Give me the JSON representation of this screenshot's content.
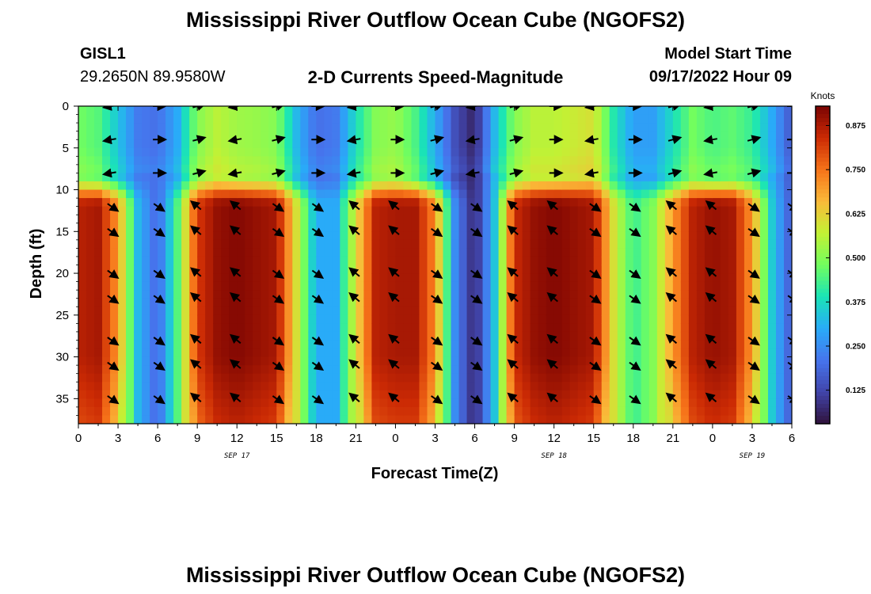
{
  "header": {
    "title_top": "Mississippi River Outflow Ocean Cube (NGOFS2)",
    "title_bottom": "Mississippi River Outflow Ocean Cube (NGOFS2)",
    "station_id": "GISL1",
    "coordinates": "29.2650N  89.9580W",
    "plot_title": "2-D Currents Speed-Magnitude",
    "model_start_label": "Model Start Time",
    "model_start_value": "09/17/2022 Hour 09"
  },
  "chart_data": {
    "type": "heatmap",
    "title": "2-D Currents Speed-Magnitude",
    "xlabel": "Forecast Time(Z)",
    "ylabel": "Depth (ft)",
    "x_range_hours": [
      0,
      54
    ],
    "y_range_ft": [
      0,
      38
    ],
    "x_tick_labels": [
      "0",
      "3",
      "6",
      "9",
      "12",
      "15",
      "18",
      "21",
      "0",
      "3",
      "6",
      "9",
      "12",
      "15",
      "18",
      "21",
      "0",
      "3",
      "6"
    ],
    "y_tick_labels": [
      "0",
      "5",
      "10",
      "15",
      "20",
      "25",
      "30",
      "35"
    ],
    "date_labels": [
      {
        "text": "SEP 17",
        "hour": 12
      },
      {
        "text": "SEP 18",
        "hour": 36
      },
      {
        "text": "SEP 19",
        "hour": 51
      }
    ],
    "colorbar": {
      "unit": "Knots",
      "range": [
        0.03,
        0.93
      ],
      "tick_labels": [
        "0.875",
        "0.750",
        "0.625",
        "0.500",
        "0.375",
        "0.250",
        "0.125"
      ],
      "tick_values": [
        0.875,
        0.75,
        0.625,
        0.5,
        0.375,
        0.25,
        0.125
      ]
    },
    "surface_speed_profile": {
      "hours": [
        0,
        1.5,
        3,
        4.5,
        6,
        7.5,
        9,
        10.5,
        12,
        13.5,
        15,
        16.5,
        18,
        19.5,
        21,
        22.5,
        24,
        25.5,
        27,
        28.5,
        30,
        31.5,
        33,
        34.5,
        36,
        37.5,
        39,
        40.5,
        42,
        43.5,
        45,
        46.5,
        48,
        49.5,
        51,
        52.5,
        54
      ],
      "knots": [
        0.48,
        0.45,
        0.34,
        0.22,
        0.2,
        0.3,
        0.5,
        0.56,
        0.53,
        0.52,
        0.5,
        0.32,
        0.2,
        0.22,
        0.38,
        0.5,
        0.52,
        0.44,
        0.3,
        0.14,
        0.06,
        0.32,
        0.5,
        0.56,
        0.56,
        0.58,
        0.6,
        0.4,
        0.28,
        0.28,
        0.38,
        0.48,
        0.44,
        0.46,
        0.42,
        0.3,
        0.15
      ]
    },
    "deep_speed_profile": {
      "hours": [
        0,
        1.5,
        3,
        4.5,
        6,
        7.5,
        9,
        10.5,
        12,
        13.5,
        15,
        16.5,
        18,
        19.5,
        21,
        22.5,
        24,
        25.5,
        27,
        28.5,
        30,
        31.5,
        33,
        34.5,
        36,
        37.5,
        39,
        40.5,
        42,
        43.5,
        45,
        46.5,
        48,
        49.5,
        51,
        52.5,
        54
      ],
      "knots": [
        0.86,
        0.88,
        0.7,
        0.32,
        0.18,
        0.45,
        0.82,
        0.9,
        0.92,
        0.9,
        0.88,
        0.6,
        0.3,
        0.3,
        0.6,
        0.86,
        0.88,
        0.88,
        0.72,
        0.25,
        0.06,
        0.34,
        0.84,
        0.9,
        0.92,
        0.9,
        0.88,
        0.6,
        0.42,
        0.5,
        0.7,
        0.86,
        0.9,
        0.88,
        0.7,
        0.35,
        0.15
      ]
    },
    "arrow_depths_ft": [
      0,
      4,
      8,
      12,
      15,
      20,
      23,
      28,
      31,
      35
    ],
    "arrow_hours": [
      2.5,
      6,
      9,
      12,
      15,
      18,
      21,
      24,
      27,
      30,
      33,
      36,
      39,
      42,
      45,
      48,
      51,
      54
    ]
  }
}
